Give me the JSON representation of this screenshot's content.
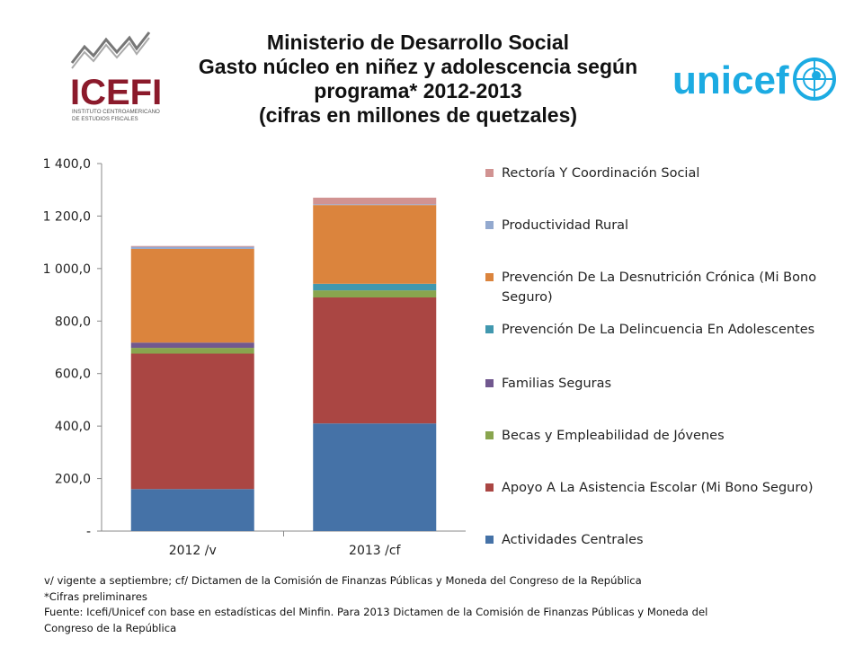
{
  "title_lines": [
    "Ministerio de Desarrollo Social",
    "Gasto núcleo en niñez y adolescencia según",
    "programa* 2012-2013",
    "(cifras en millones de quetzales)"
  ],
  "logos": {
    "icefi": {
      "name": "ICEFI",
      "tagline_1": "INSTITUTO CENTROAMERICANO",
      "tagline_2": "DE ESTUDIOS FISCALES"
    },
    "unicef": {
      "name": "unicef"
    }
  },
  "chart_data": {
    "type": "stacked-bar",
    "categories": [
      "2012 /v",
      "2013 /cf"
    ],
    "y_ticks": [
      "-",
      "200,0",
      "400,0",
      "600,0",
      "800,0",
      "1 000,0",
      "1 200,0",
      "1 400,0"
    ],
    "ylim": [
      0,
      1400
    ],
    "series": [
      {
        "name": "Actividades Centrales",
        "color": "#4572A7",
        "values": [
          160,
          410
        ]
      },
      {
        "name": "Apoyo A La Asistencia Escolar (Mi Bono Seguro)",
        "color": "#AA4643",
        "values": [
          516,
          480
        ]
      },
      {
        "name": "Becas y Empleabilidad de Jóvenes",
        "color": "#89A54E",
        "values": [
          22,
          27
        ]
      },
      {
        "name": "Familias Seguras",
        "color": "#71588F",
        "values": [
          20,
          0
        ]
      },
      {
        "name": "Prevención De La Delincuencia En Adolescentes",
        "color": "#4198AF",
        "values": [
          0,
          25
        ]
      },
      {
        "name": "Prevención De La Desnutrición Crónica (Mi Bono Seguro)",
        "color": "#DB843D",
        "values": [
          357,
          300
        ]
      },
      {
        "name": "Productividad Rural",
        "color": "#93A9CF",
        "values": [
          8,
          3
        ]
      },
      {
        "name": "Rectoría Y Coordinación Social",
        "color": "#D19392",
        "values": [
          3,
          25
        ]
      }
    ],
    "legend_position": "right",
    "grid": false
  },
  "notes": [
    "v/ vigente a septiembre; cf/ Dictamen de la Comisión de Finanzas Públicas y Moneda del Congreso de la República",
    "*Cifras preliminares",
    "Fuente: Icefi/Unicef con base en estadísticas del Minfin.  Para 2013 Dictamen de la Comisión de Finanzas Públicas y Moneda del",
    "Congreso de la República"
  ]
}
